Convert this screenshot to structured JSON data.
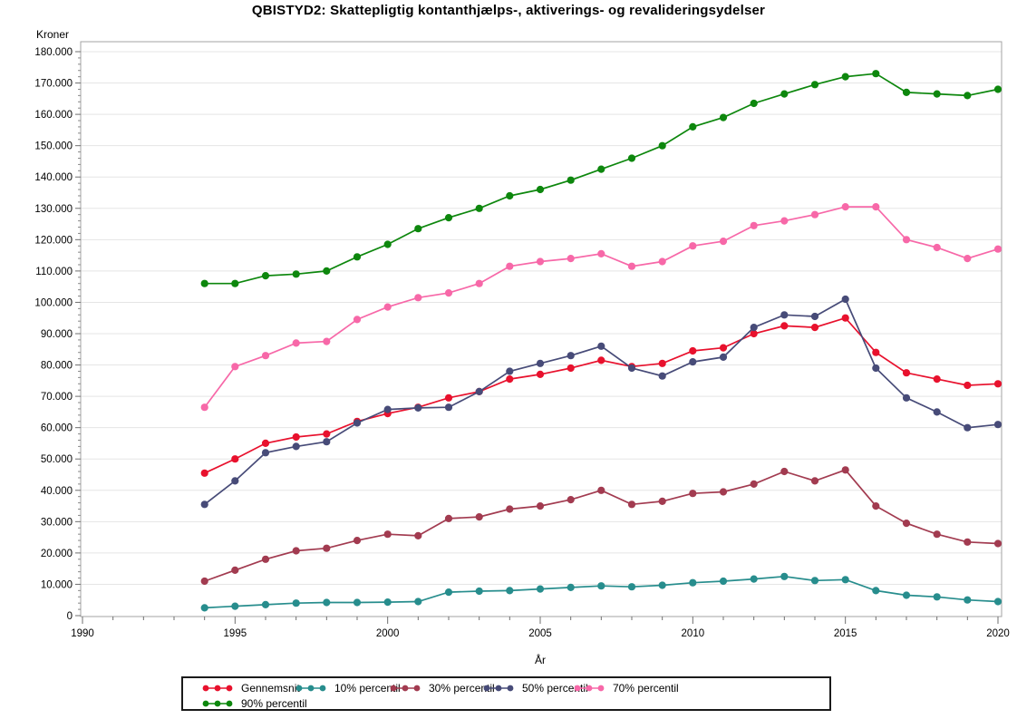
{
  "header": {
    "title": "QBISTYD2: Skattepligtig kontanthjælps-, aktiverings- og revalideringsydelser"
  },
  "chart_data": {
    "type": "line",
    "title": "QBISTYD2: Skattepligtig kontanthjælps-, aktiverings- og revalideringsydelser",
    "ylabel": "Kroner",
    "xlabel": "År",
    "xlim": [
      1990,
      2020
    ],
    "ylim": [
      0,
      180000
    ],
    "grid": "horizontal",
    "legend_position": "bottom",
    "x_tick_values": [
      1990,
      1995,
      2000,
      2005,
      2010,
      2015,
      2020
    ],
    "x_tick_labels": [
      "1990",
      "1995",
      "2000",
      "2005",
      "2010",
      "2015",
      "2020"
    ],
    "y_tick_values": [
      0,
      10000,
      20000,
      30000,
      40000,
      50000,
      60000,
      70000,
      80000,
      90000,
      100000,
      110000,
      120000,
      130000,
      140000,
      150000,
      160000,
      170000,
      180000
    ],
    "y_tick_labels": [
      "0",
      "10.000",
      "20.000",
      "30.000",
      "40.000",
      "50.000",
      "60.000",
      "70.000",
      "80.000",
      "90.000",
      "100.000",
      "110.000",
      "120.000",
      "130.000",
      "140.000",
      "150.000",
      "160.000",
      "170.000",
      "180.000"
    ],
    "x": [
      1994,
      1995,
      1996,
      1997,
      1998,
      1999,
      2000,
      2001,
      2002,
      2003,
      2004,
      2005,
      2006,
      2007,
      2008,
      2009,
      2010,
      2011,
      2012,
      2013,
      2014,
      2015,
      2016,
      2017,
      2018,
      2019,
      2020
    ],
    "series": [
      {
        "name": "Gennemsnit",
        "color": "#e8112d",
        "values": [
          45500,
          50000,
          55000,
          57000,
          58000,
          62000,
          64500,
          66500,
          69500,
          71500,
          75500,
          77000,
          79000,
          81500,
          79500,
          80500,
          84500,
          85500,
          90000,
          92500,
          92000,
          95000,
          84000,
          77500,
          75500,
          73500,
          74000
        ]
      },
      {
        "name": "10% percentil",
        "color": "#278d8d",
        "values": [
          2500,
          3000,
          3500,
          4000,
          4200,
          4200,
          4300,
          4500,
          7500,
          7800,
          8000,
          8500,
          9000,
          9500,
          9200,
          9700,
          10500,
          11000,
          11700,
          12500,
          11200,
          11500,
          8000,
          6500,
          6000,
          5000,
          4500
        ]
      },
      {
        "name": "30% percentil",
        "color": "#a23b50",
        "values": [
          11000,
          14500,
          18000,
          20700,
          21500,
          24000,
          26000,
          25500,
          31000,
          31500,
          34000,
          35000,
          37000,
          40000,
          35500,
          36500,
          39000,
          39500,
          42000,
          46000,
          43000,
          46500,
          35000,
          29500,
          26000,
          23500,
          23000
        ]
      },
      {
        "name": "50% percentil",
        "color": "#474b78",
        "values": [
          35500,
          43000,
          52000,
          54000,
          55500,
          61500,
          65800,
          66300,
          66500,
          71500,
          78000,
          80500,
          83000,
          86000,
          79000,
          76500,
          81000,
          82500,
          92000,
          96000,
          95500,
          101000,
          79000,
          69500,
          65000,
          60000,
          61000
        ]
      },
      {
        "name": "70% percentil",
        "color": "#f768a8",
        "values": [
          66500,
          79500,
          83000,
          87000,
          87500,
          94500,
          98500,
          101500,
          103000,
          106000,
          111500,
          113000,
          114000,
          115500,
          111500,
          113000,
          118000,
          119500,
          124500,
          126000,
          128000,
          130500,
          130500,
          120000,
          117500,
          114000,
          117000
        ]
      },
      {
        "name": "90% percentil",
        "color": "#0d870d",
        "values": [
          106000,
          106000,
          108500,
          109000,
          110000,
          114500,
          118500,
          123500,
          127000,
          130000,
          134000,
          136000,
          139000,
          142500,
          146000,
          150000,
          156000,
          159000,
          163500,
          166500,
          169500,
          172000,
          173000,
          167000,
          166500,
          166000,
          168000
        ]
      }
    ]
  }
}
